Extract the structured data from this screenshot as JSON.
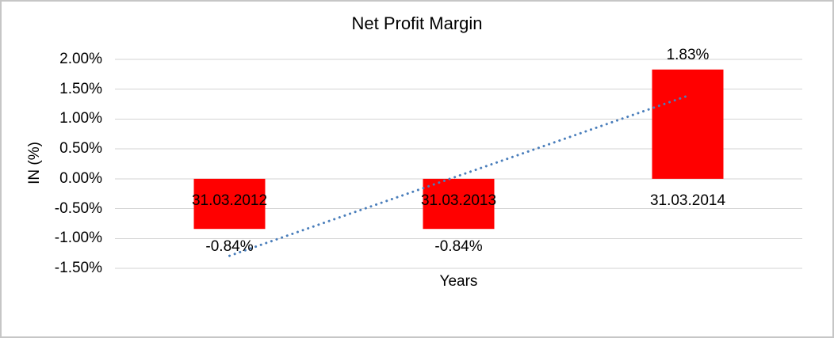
{
  "window": {
    "background": "#ffffff",
    "border_color": "#c6c6c6"
  },
  "chart_data": {
    "type": "bar",
    "title": "Net Profit Margin",
    "xlabel": "Years",
    "ylabel": "IN (%)",
    "categories": [
      "31.03.2012",
      "31.03.2013",
      "31.03.2014"
    ],
    "values": [
      -0.84,
      -0.84,
      1.83
    ],
    "data_labels": [
      "-0.84%",
      "-0.84%",
      "1.83%"
    ],
    "y_ticks": [
      2.0,
      1.5,
      1.0,
      0.5,
      0.0,
      -0.5,
      -1.0,
      -1.5
    ],
    "y_tick_labels": [
      "2.00%",
      "1.50%",
      "1.00%",
      "0.50%",
      "0.00%",
      "-0.50%",
      "-1.00%",
      "-1.50%"
    ],
    "ylim": [
      -1.5,
      2.0
    ],
    "grid": true,
    "gridline_color": "#d3d3d3",
    "bar_color": "#ff0000",
    "legend": "none",
    "trendline": {
      "type": "linear",
      "style": "dotted",
      "color": "#4a7ebb",
      "start_value": -1.29,
      "end_value": 1.39
    }
  }
}
